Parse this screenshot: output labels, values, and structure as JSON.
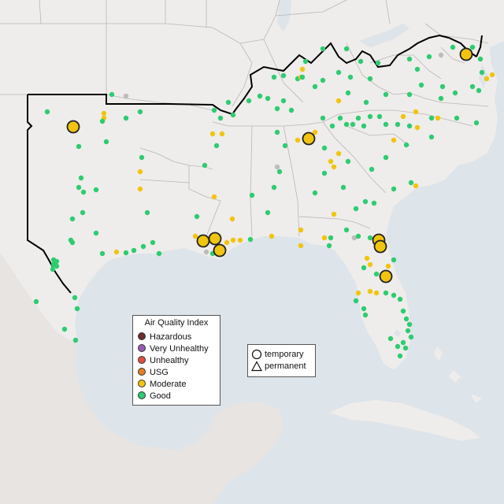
{
  "colors": {
    "water": "#dde4ea",
    "land": "#efedeb",
    "land_outside": "#e7e4e1",
    "state_border": "#b9b6b3",
    "region_border": "#000000",
    "good": "#2ecc71",
    "moderate": "#f1c40f",
    "usg": "#e67e22",
    "unhealthy": "#e74c3c",
    "very_unhealthy": "#9b59b6",
    "hazardous": "#6d2e2e",
    "no_data": "#bcbcbc"
  },
  "legend": {
    "title": "Air Quality Index",
    "items": [
      {
        "label": "Hazardous",
        "color": "#6d2e2e",
        "icon": "circle-icon"
      },
      {
        "label": "Very Unhealthy",
        "color": "#9b59b6",
        "icon": "circle-icon"
      },
      {
        "label": "Unhealthy",
        "color": "#e74c3c",
        "icon": "circle-icon"
      },
      {
        "label": "USG",
        "color": "#e67e22",
        "icon": "circle-icon"
      },
      {
        "label": "Moderate",
        "color": "#f1c40f",
        "icon": "circle-icon"
      },
      {
        "label": "Good",
        "color": "#2ecc71",
        "icon": "circle-icon"
      }
    ]
  },
  "monitor_types": {
    "items": [
      {
        "label": "temporary",
        "icon": "circle-outline-icon"
      },
      {
        "label": "permanent",
        "icon": "triangle-outline-icon"
      }
    ]
  }
}
